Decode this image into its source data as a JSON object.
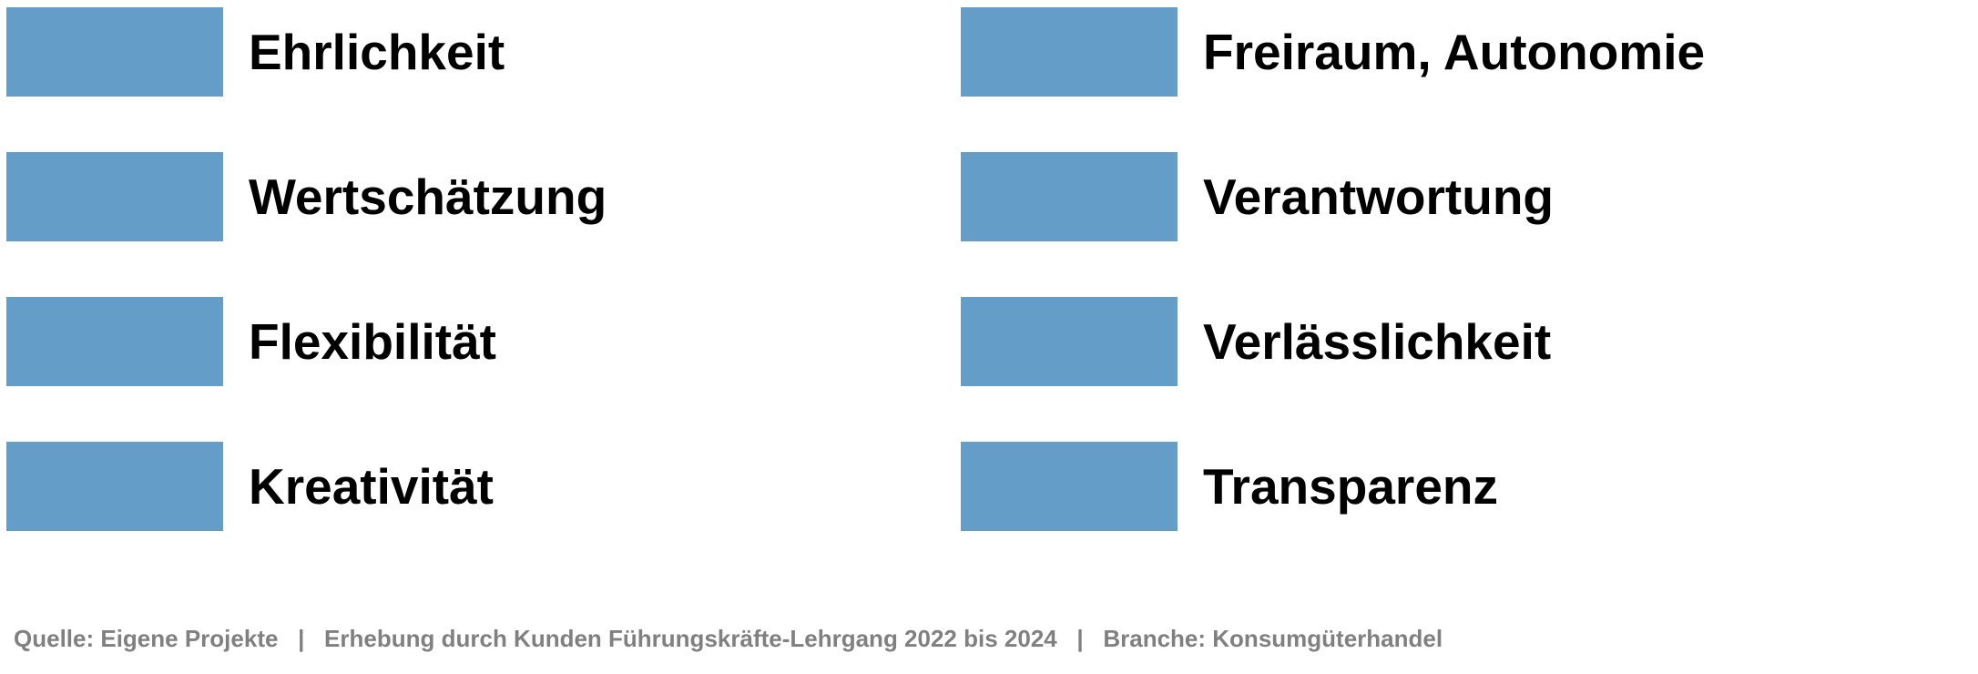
{
  "legend": {
    "items": [
      {
        "label": "Ehrlichkeit",
        "color": "#659dc9"
      },
      {
        "label": "Wertschätzung",
        "color": "#659dc9"
      },
      {
        "label": "Flexibilität",
        "color": "#659dc9"
      },
      {
        "label": "Kreativität",
        "color": "#659dc9"
      },
      {
        "label": "Freiraum, Autonomie",
        "color": "#659dc9"
      },
      {
        "label": "Verantwortung",
        "color": "#659dc9"
      },
      {
        "label": "Verlässlichkeit",
        "color": "#659dc9"
      },
      {
        "label": "Transparenz",
        "color": "#659dc9"
      }
    ]
  },
  "footer": "Quelle: Eigene Projekte   |   Erhebung durch Kunden Führungskräfte-Lehrgang 2022 bis 2024   |   Branche: Konsumgüterhandel"
}
